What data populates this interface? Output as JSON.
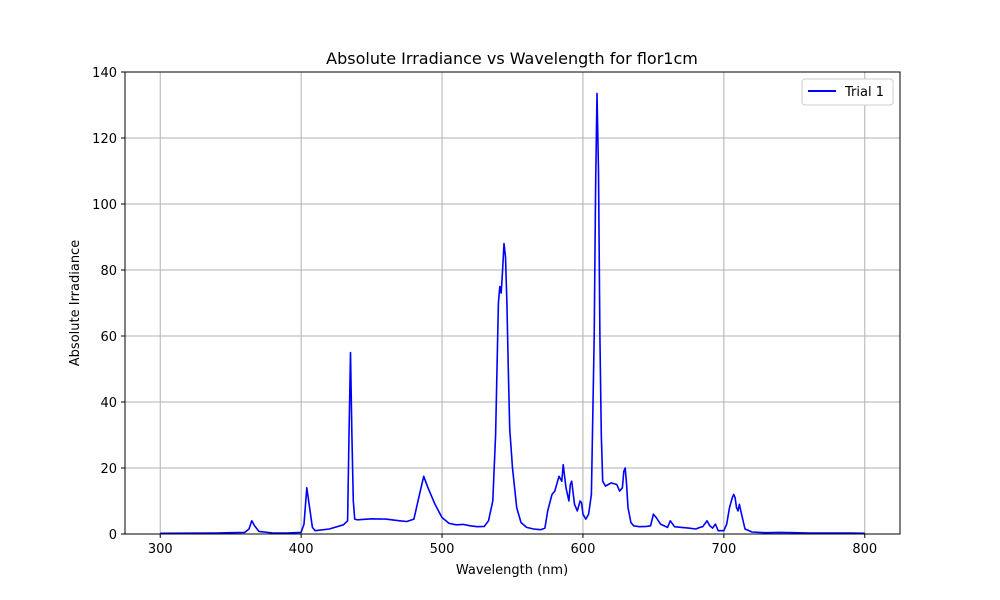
{
  "chart_data": {
    "type": "line",
    "title": "Absolute Irradiance vs Wavelength for flor1cm",
    "xlabel": "Wavelength (nm)",
    "ylabel": "Absolute Irradiance",
    "xlim": [
      275,
      825
    ],
    "ylim": [
      0,
      140
    ],
    "xticks": [
      300,
      400,
      500,
      600,
      700,
      800
    ],
    "yticks": [
      0,
      20,
      40,
      60,
      80,
      100,
      120,
      140
    ],
    "grid": true,
    "legend_position": "top-right",
    "series": [
      {
        "name": "Trial 1",
        "color": "#0000ff",
        "x": [
          300,
          340,
          350,
          360,
          363,
          365,
          367,
          370,
          380,
          390,
          400,
          402,
          404,
          406,
          408,
          410,
          420,
          430,
          433,
          434,
          435,
          436,
          437,
          438,
          440,
          450,
          460,
          470,
          475,
          480,
          484,
          487,
          490,
          495,
          500,
          505,
          510,
          515,
          520,
          525,
          530,
          533,
          536,
          538,
          540,
          541,
          542,
          543,
          544,
          545,
          546,
          547,
          548,
          550,
          553,
          556,
          560,
          565,
          570,
          573,
          575,
          578,
          580,
          582,
          583,
          585,
          586,
          588,
          590,
          591,
          592,
          594,
          596,
          598,
          599,
          600,
          602,
          604,
          606,
          608,
          609,
          610,
          611,
          612,
          613,
          614,
          616,
          618,
          620,
          624,
          626,
          628,
          629,
          630,
          631,
          632,
          634,
          636,
          640,
          645,
          648,
          650,
          652,
          655,
          660,
          662,
          665,
          670,
          675,
          680,
          683,
          685,
          688,
          690,
          692,
          694,
          696,
          700,
          702,
          704,
          706,
          707,
          708,
          709,
          710,
          711,
          712,
          715,
          720,
          725,
          730,
          740,
          750,
          760,
          770,
          780,
          790,
          800
        ],
        "values": [
          0.2,
          0.3,
          0.4,
          0.5,
          1.5,
          4.0,
          2.5,
          0.8,
          0.3,
          0.3,
          0.5,
          3.0,
          14.0,
          8.0,
          2.0,
          1.0,
          1.5,
          2.8,
          4.0,
          30.0,
          55.0,
          30.0,
          10.0,
          4.5,
          4.3,
          4.6,
          4.5,
          4.0,
          3.8,
          4.5,
          12.0,
          17.5,
          14.0,
          9.0,
          5.0,
          3.2,
          2.8,
          2.9,
          2.5,
          2.2,
          2.3,
          4.0,
          10.0,
          30.0,
          70.0,
          75.0,
          73.0,
          80.0,
          88.0,
          84.0,
          70.0,
          50.0,
          32.0,
          20.0,
          8.0,
          3.5,
          2.0,
          1.5,
          1.3,
          1.8,
          7.0,
          12.0,
          13.0,
          16.0,
          17.5,
          16.0,
          21.0,
          14.0,
          10.0,
          15.0,
          16.0,
          9.0,
          7.0,
          10.0,
          9.5,
          6.0,
          4.5,
          6.0,
          12.0,
          60.0,
          105.0,
          133.5,
          110.0,
          60.0,
          30.0,
          16.0,
          14.5,
          15.0,
          15.5,
          15.0,
          13.0,
          14.0,
          19.0,
          20.0,
          15.0,
          8.0,
          3.5,
          2.5,
          2.2,
          2.3,
          2.5,
          6.0,
          5.0,
          3.0,
          2.0,
          4.0,
          2.2,
          2.0,
          1.8,
          1.5,
          2.0,
          2.2,
          4.0,
          2.5,
          1.8,
          3.0,
          1.0,
          1.0,
          3.0,
          8.0,
          11.0,
          12.0,
          11.0,
          8.0,
          7.0,
          9.0,
          7.0,
          1.5,
          0.6,
          0.5,
          0.4,
          0.5,
          0.4,
          0.3,
          0.3,
          0.3,
          0.3,
          0.2
        ]
      }
    ]
  }
}
